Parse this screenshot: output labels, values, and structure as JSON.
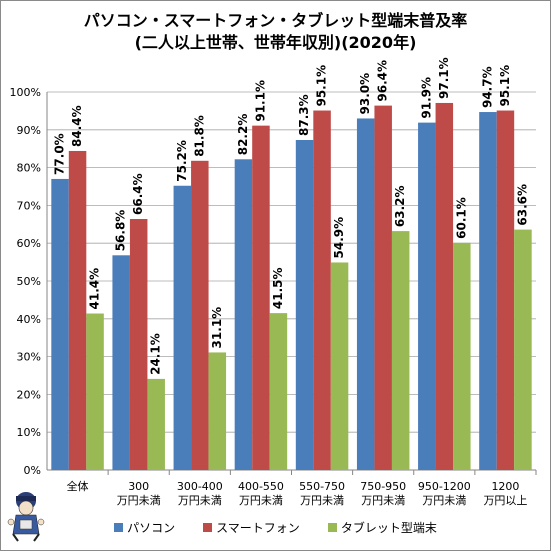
{
  "chart_data": {
    "type": "bar",
    "title": "パソコン・スマートフォン・タブレット型端末普及率",
    "subtitle": "(二人以上世帯、世帯年収別)(2020年)",
    "categories": [
      [
        "全体"
      ],
      [
        "300",
        "万円未満"
      ],
      [
        "300-400",
        "万円未満"
      ],
      [
        "400-550",
        "万円未満"
      ],
      [
        "550-750",
        "万円未満"
      ],
      [
        "750-950",
        "万円未満"
      ],
      [
        "950-1200",
        "万円未満"
      ],
      [
        "1200",
        "万円以上"
      ]
    ],
    "series": [
      {
        "name": "パソコン",
        "color": "#4a7ebb",
        "values": [
          77.0,
          56.8,
          75.2,
          82.2,
          87.3,
          93.0,
          91.9,
          94.7
        ],
        "labels": [
          "77.0%",
          "56.8%",
          "75.2%",
          "82.2%",
          "87.3%",
          "93.0%",
          "91.9%",
          "94.7%"
        ]
      },
      {
        "name": "スマートフォン",
        "color": "#be4b48",
        "values": [
          84.4,
          66.4,
          81.8,
          91.1,
          95.1,
          96.4,
          97.1,
          95.1
        ],
        "labels": [
          "84.4%",
          "66.4%",
          "81.8%",
          "91.1%",
          "95.1%",
          "96.4%",
          "97.1%",
          "95.1%"
        ]
      },
      {
        "name": "タブレット型端末",
        "color": "#98b954",
        "values": [
          41.4,
          24.1,
          31.1,
          41.5,
          54.9,
          63.2,
          60.1,
          63.6
        ],
        "labels": [
          "41.4%",
          "24.1%",
          "31.1%",
          "41.5%",
          "54.9%",
          "63.2%",
          "60.1%",
          "63.6%"
        ]
      }
    ],
    "ylim": [
      0,
      100
    ],
    "yticks": [
      "0%",
      "10%",
      "20%",
      "30%",
      "40%",
      "50%",
      "60%",
      "70%",
      "80%",
      "90%",
      "100%"
    ],
    "grid": true,
    "legend_position": "bottom"
  }
}
